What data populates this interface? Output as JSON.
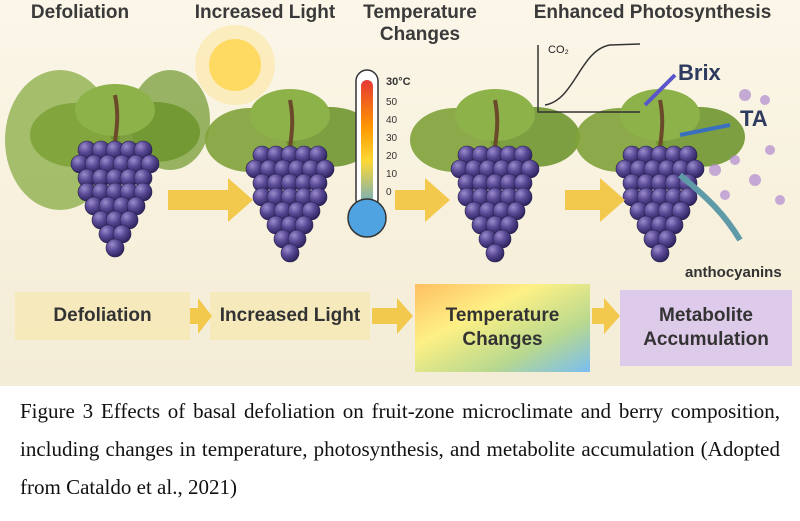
{
  "figure": {
    "top_labels": [
      "Defoliation",
      "Increased Light",
      "Temperature Changes",
      "Enhanced Photosynthesis"
    ],
    "thermometer_labels": [
      "30°C",
      "50",
      "40",
      "30",
      "20",
      "10",
      "0"
    ],
    "graph_label": "CO₂",
    "outputs": [
      "Brix",
      "TA",
      "anthocyanins"
    ],
    "flow_boxes": [
      "Defoliation",
      "Increased Light",
      "Temperature Changes",
      "Metabolite Accumulation"
    ]
  },
  "caption": "Figure 3 Effects of basal defoliation on fruit-zone microclimate and berry composition, including changes in temperature, photosynthesis, and metabolite accumulation (Adopted from Cataldo et al., 2021)"
}
